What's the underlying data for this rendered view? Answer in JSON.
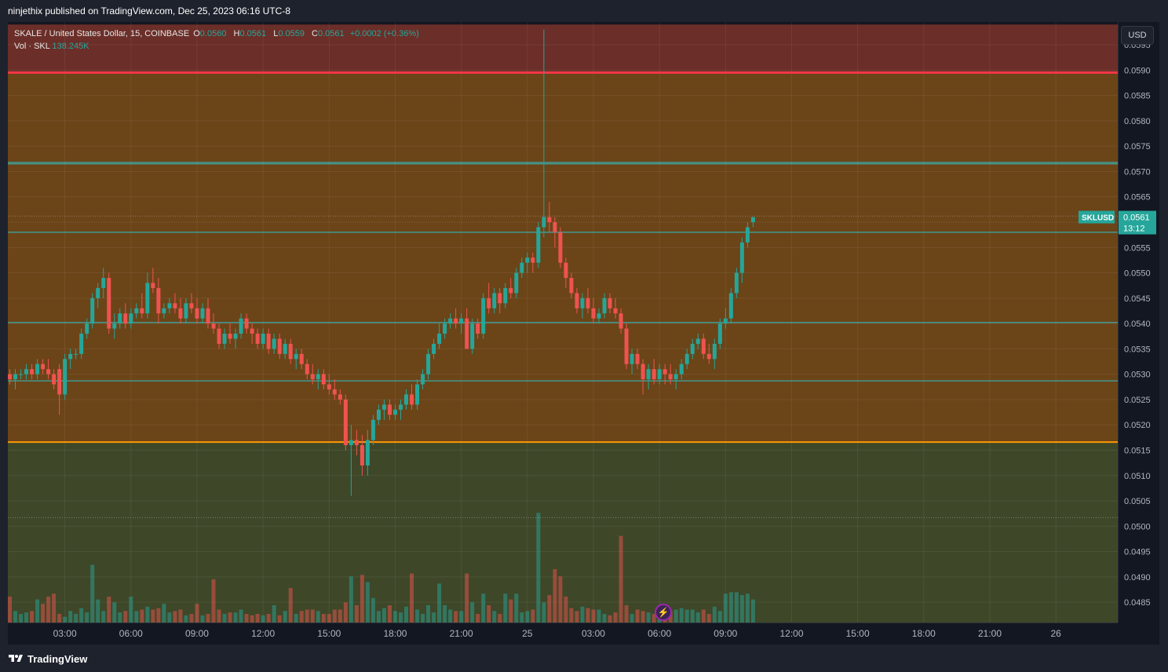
{
  "published_text": "ninjethix published on TradingView.com, Dec 25, 2023 06:16 UTC-8",
  "legend": {
    "symbol": "SKALE / United States Dollar, 15, COINBASE",
    "open_label": "O",
    "open": "0.0560",
    "high_label": "H",
    "high": "0.0561",
    "low_label": "L",
    "low": "0.0559",
    "close_label": "C",
    "close": "0.0561",
    "change": "+0.0002 (+0.36%)",
    "vol_label": "Vol · SKL",
    "vol_value": "138.245K"
  },
  "currency_button": "USD",
  "price_tag": {
    "symbol": "SKLUSD",
    "price": "0.0561",
    "countdown": "13:12"
  },
  "footer_brand": "TradingView",
  "colors": {
    "up": "#26a69a",
    "down": "#ef5350",
    "zone_top": "#6b2e28",
    "zone_mid": "#6b4418",
    "zone_bottom": "#3e4728",
    "hline": "#2ec4cf",
    "red_line": "#f23645",
    "orange_line": "#ff9800"
  },
  "chart_data": {
    "type": "candlestick",
    "title": "SKALE / United States Dollar, 15, COINBASE",
    "ylim": [
      0.0481,
      0.05995
    ],
    "y_ticks": [
      "0.0595",
      "0.0590",
      "0.0585",
      "0.0580",
      "0.0575",
      "0.0570",
      "0.0565",
      "0.0560",
      "0.0555",
      "0.0550",
      "0.0545",
      "0.0540",
      "0.0535",
      "0.0530",
      "0.0525",
      "0.0520",
      "0.0515",
      "0.0510",
      "0.0505",
      "0.0500",
      "0.0495",
      "0.0490",
      "0.0485"
    ],
    "x_ticks": [
      "03:00",
      "06:00",
      "09:00",
      "12:00",
      "15:00",
      "18:00",
      "21:00",
      "25",
      "03:00",
      "06:00",
      "09:00",
      "12:00",
      "15:00",
      "18:00",
      "21:00",
      "26"
    ],
    "x_tick_slot": [
      10,
      22,
      34,
      46,
      58,
      70,
      82,
      94,
      106,
      118,
      130,
      142,
      154,
      166,
      178,
      190
    ],
    "zones": [
      {
        "from": 0.05895,
        "to": 0.0599,
        "color": "zone_top"
      },
      {
        "from": 0.05165,
        "to": 0.05895,
        "color": "zone_mid"
      },
      {
        "from": 0.0481,
        "to": 0.05165,
        "color": "zone_bottom"
      }
    ],
    "hlines": [
      {
        "price": 0.05895,
        "color": "red_line",
        "width": 3
      },
      {
        "price": 0.05718,
        "color": "hline",
        "width": 1
      },
      {
        "price": 0.05715,
        "color": "hline",
        "width": 1
      },
      {
        "price": 0.0558,
        "color": "hline",
        "width": 1
      },
      {
        "price": 0.05402,
        "color": "hline",
        "width": 1
      },
      {
        "price": 0.05287,
        "color": "hline",
        "width": 1
      },
      {
        "price": 0.05166,
        "color": "orange_line",
        "width": 2
      }
    ],
    "dotted_lines": [
      0.05612,
      0.05017
    ],
    "last_price": 0.0561,
    "volume_ylim": [
      0,
      5200
    ],
    "candles": [
      [
        0.053,
        0.0531,
        0.0528,
        0.0529,
        900
      ],
      [
        0.0529,
        0.0531,
        0.0527,
        0.053,
        400
      ],
      [
        0.053,
        0.0531,
        0.0529,
        0.053,
        300
      ],
      [
        0.053,
        0.0532,
        0.0529,
        0.0531,
        350
      ],
      [
        0.0531,
        0.0532,
        0.0529,
        0.053,
        400
      ],
      [
        0.053,
        0.0533,
        0.0529,
        0.0532,
        800
      ],
      [
        0.0532,
        0.0533,
        0.053,
        0.0531,
        650
      ],
      [
        0.0531,
        0.0533,
        0.0529,
        0.053,
        900
      ],
      [
        0.053,
        0.0531,
        0.0527,
        0.0528,
        1000
      ],
      [
        0.0531,
        0.0532,
        0.0522,
        0.0526,
        300
      ],
      [
        0.0526,
        0.0534,
        0.0525,
        0.0533,
        200
      ],
      [
        0.0533,
        0.0535,
        0.0531,
        0.0534,
        400
      ],
      [
        0.0534,
        0.0535,
        0.0533,
        0.0534,
        300
      ],
      [
        0.0534,
        0.0539,
        0.0533,
        0.0538,
        500
      ],
      [
        0.0538,
        0.0541,
        0.0537,
        0.054,
        350
      ],
      [
        0.054,
        0.0546,
        0.0539,
        0.0545,
        2000
      ],
      [
        0.0545,
        0.0548,
        0.0543,
        0.0547,
        800
      ],
      [
        0.0547,
        0.0551,
        0.0545,
        0.0549,
        400
      ],
      [
        0.0549,
        0.055,
        0.0538,
        0.0539,
        900
      ],
      [
        0.0539,
        0.0542,
        0.0537,
        0.054,
        700
      ],
      [
        0.054,
        0.0543,
        0.0539,
        0.0542,
        350
      ],
      [
        0.0542,
        0.0544,
        0.0539,
        0.054,
        400
      ],
      [
        0.054,
        0.0543,
        0.0539,
        0.0542,
        900
      ],
      [
        0.0542,
        0.0544,
        0.0541,
        0.0543,
        400
      ],
      [
        0.0543,
        0.0546,
        0.0541,
        0.0542,
        450
      ],
      [
        0.0542,
        0.055,
        0.0541,
        0.0548,
        550
      ],
      [
        0.0548,
        0.0551,
        0.0546,
        0.0547,
        450
      ],
      [
        0.0547,
        0.0549,
        0.054,
        0.0542,
        500
      ],
      [
        0.0542,
        0.0544,
        0.0541,
        0.0543,
        650
      ],
      [
        0.0543,
        0.0545,
        0.0542,
        0.0544,
        350
      ],
      [
        0.0544,
        0.0546,
        0.0542,
        0.0543,
        400
      ],
      [
        0.0543,
        0.0545,
        0.054,
        0.0541,
        450
      ],
      [
        0.0541,
        0.0545,
        0.054,
        0.0544,
        250
      ],
      [
        0.0544,
        0.0546,
        0.0542,
        0.0543,
        300
      ],
      [
        0.0543,
        0.0545,
        0.054,
        0.0541,
        650
      ],
      [
        0.0541,
        0.0544,
        0.054,
        0.0543,
        250
      ],
      [
        0.0543,
        0.0545,
        0.0539,
        0.054,
        300
      ],
      [
        0.054,
        0.0542,
        0.0538,
        0.0539,
        1500
      ],
      [
        0.0539,
        0.054,
        0.0535,
        0.0536,
        450
      ],
      [
        0.0536,
        0.0539,
        0.0535,
        0.0538,
        300
      ],
      [
        0.0538,
        0.054,
        0.0536,
        0.0537,
        350
      ],
      [
        0.0537,
        0.0539,
        0.0535,
        0.0538,
        350
      ],
      [
        0.0538,
        0.0542,
        0.0537,
        0.0541,
        450
      ],
      [
        0.0541,
        0.0542,
        0.0538,
        0.0539,
        300
      ],
      [
        0.0539,
        0.054,
        0.0536,
        0.0538,
        250
      ],
      [
        0.0538,
        0.0539,
        0.0535,
        0.0536,
        300
      ],
      [
        0.0536,
        0.0539,
        0.0535,
        0.0538,
        250
      ],
      [
        0.0538,
        0.0539,
        0.0534,
        0.0535,
        300
      ],
      [
        0.0535,
        0.0538,
        0.0534,
        0.0537,
        600
      ],
      [
        0.0537,
        0.0538,
        0.0533,
        0.0534,
        250
      ],
      [
        0.0534,
        0.0537,
        0.0533,
        0.0536,
        400
      ],
      [
        0.0536,
        0.0537,
        0.0532,
        0.0533,
        1200
      ],
      [
        0.0533,
        0.0535,
        0.0531,
        0.0534,
        300
      ],
      [
        0.0534,
        0.0535,
        0.0531,
        0.0532,
        400
      ],
      [
        0.0532,
        0.0533,
        0.0529,
        0.053,
        450
      ],
      [
        0.053,
        0.0532,
        0.0528,
        0.0529,
        450
      ],
      [
        0.0529,
        0.0531,
        0.0527,
        0.053,
        400
      ],
      [
        0.053,
        0.0531,
        0.0527,
        0.0528,
        300
      ],
      [
        0.0528,
        0.053,
        0.0526,
        0.0527,
        300
      ],
      [
        0.0527,
        0.0529,
        0.0525,
        0.0526,
        450
      ],
      [
        0.0526,
        0.0527,
        0.0524,
        0.0525,
        450
      ],
      [
        0.0525,
        0.0526,
        0.0515,
        0.0516,
        700
      ],
      [
        0.0516,
        0.052,
        0.0506,
        0.0517,
        1600
      ],
      [
        0.0517,
        0.0519,
        0.0514,
        0.0516,
        600
      ],
      [
        0.0516,
        0.0518,
        0.051,
        0.0512,
        1650
      ],
      [
        0.0512,
        0.0519,
        0.051,
        0.0517,
        1400
      ],
      [
        0.0517,
        0.0522,
        0.0516,
        0.0521,
        850
      ],
      [
        0.0521,
        0.0524,
        0.052,
        0.0523,
        400
      ],
      [
        0.0523,
        0.0525,
        0.0521,
        0.0524,
        500
      ],
      [
        0.0524,
        0.0525,
        0.0521,
        0.0522,
        600
      ],
      [
        0.0522,
        0.0524,
        0.0521,
        0.0523,
        400
      ],
      [
        0.0523,
        0.0525,
        0.0521,
        0.0524,
        350
      ],
      [
        0.0524,
        0.0527,
        0.0523,
        0.0526,
        550
      ],
      [
        0.0526,
        0.0528,
        0.0523,
        0.0524,
        1700
      ],
      [
        0.0524,
        0.0529,
        0.0523,
        0.0528,
        450
      ],
      [
        0.0528,
        0.0531,
        0.0527,
        0.053,
        300
      ],
      [
        0.053,
        0.0535,
        0.0529,
        0.0534,
        600
      ],
      [
        0.0534,
        0.0537,
        0.0533,
        0.0536,
        350
      ],
      [
        0.0536,
        0.054,
        0.0535,
        0.0538,
        1350
      ],
      [
        0.0538,
        0.0541,
        0.0537,
        0.054,
        600
      ],
      [
        0.054,
        0.0542,
        0.0539,
        0.0541,
        450
      ],
      [
        0.0541,
        0.0543,
        0.0539,
        0.054,
        400
      ],
      [
        0.054,
        0.0542,
        0.0538,
        0.0541,
        400
      ],
      [
        0.0541,
        0.0543,
        0.0535,
        0.0535,
        1700
      ],
      [
        0.0535,
        0.0541,
        0.0534,
        0.054,
        700
      ],
      [
        0.054,
        0.0541,
        0.0537,
        0.0538,
        300
      ],
      [
        0.0538,
        0.0546,
        0.0537,
        0.0545,
        1000
      ],
      [
        0.0545,
        0.0548,
        0.0542,
        0.0543,
        600
      ],
      [
        0.0543,
        0.0547,
        0.0542,
        0.0546,
        400
      ],
      [
        0.0546,
        0.0547,
        0.0542,
        0.0544,
        300
      ],
      [
        0.0544,
        0.0548,
        0.0543,
        0.0547,
        1000
      ],
      [
        0.0547,
        0.0549,
        0.0545,
        0.0546,
        800
      ],
      [
        0.0546,
        0.0551,
        0.0545,
        0.055,
        1000
      ],
      [
        0.055,
        0.0553,
        0.0549,
        0.0552,
        350
      ],
      [
        0.0552,
        0.0554,
        0.055,
        0.0553,
        400
      ],
      [
        0.0553,
        0.0554,
        0.055,
        0.0552,
        450
      ],
      [
        0.0552,
        0.056,
        0.0551,
        0.0559,
        3800
      ],
      [
        0.0559,
        0.0598,
        0.0557,
        0.0561,
        700
      ],
      [
        0.0561,
        0.0564,
        0.0558,
        0.056,
        950
      ],
      [
        0.056,
        0.0561,
        0.0555,
        0.0558,
        1850
      ],
      [
        0.0558,
        0.0559,
        0.0551,
        0.0552,
        1600
      ],
      [
        0.0552,
        0.0553,
        0.0547,
        0.0549,
        900
      ],
      [
        0.0549,
        0.055,
        0.0545,
        0.0546,
        500
      ],
      [
        0.0546,
        0.0547,
        0.0542,
        0.0543,
        400
      ],
      [
        0.0543,
        0.0546,
        0.0541,
        0.0545,
        550
      ],
      [
        0.0545,
        0.0547,
        0.0542,
        0.0543,
        500
      ],
      [
        0.0543,
        0.0545,
        0.054,
        0.0541,
        450
      ],
      [
        0.0541,
        0.0543,
        0.054,
        0.0542,
        450
      ],
      [
        0.0542,
        0.0546,
        0.0541,
        0.0545,
        300
      ],
      [
        0.0545,
        0.0546,
        0.0542,
        0.0543,
        250
      ],
      [
        0.0543,
        0.0545,
        0.0541,
        0.0542,
        350
      ],
      [
        0.0542,
        0.0543,
        0.0538,
        0.0539,
        3000
      ],
      [
        0.0539,
        0.054,
        0.0531,
        0.0532,
        600
      ],
      [
        0.0532,
        0.0535,
        0.053,
        0.0534,
        300
      ],
      [
        0.0534,
        0.0535,
        0.0531,
        0.0532,
        450
      ],
      [
        0.0532,
        0.0533,
        0.0526,
        0.0529,
        400
      ],
      [
        0.0529,
        0.0532,
        0.0527,
        0.0531,
        350
      ],
      [
        0.0531,
        0.0533,
        0.0528,
        0.0529,
        300
      ],
      [
        0.0529,
        0.0532,
        0.0528,
        0.0531,
        400
      ],
      [
        0.0531,
        0.0532,
        0.0528,
        0.053,
        350
      ],
      [
        0.053,
        0.0532,
        0.0528,
        0.0529,
        400
      ],
      [
        0.0529,
        0.0531,
        0.0527,
        0.053,
        450
      ],
      [
        0.053,
        0.0533,
        0.0529,
        0.0532,
        500
      ],
      [
        0.0532,
        0.0535,
        0.0531,
        0.0534,
        450
      ],
      [
        0.0534,
        0.0537,
        0.0533,
        0.0536,
        450
      ],
      [
        0.0536,
        0.0538,
        0.0535,
        0.0537,
        350
      ],
      [
        0.0537,
        0.0538,
        0.0533,
        0.0534,
        450
      ],
      [
        0.0534,
        0.0536,
        0.0532,
        0.0533,
        300
      ],
      [
        0.0533,
        0.0537,
        0.0531,
        0.0536,
        550
      ],
      [
        0.0536,
        0.0541,
        0.0535,
        0.054,
        400
      ],
      [
        0.054,
        0.0543,
        0.0539,
        0.0541,
        1000
      ],
      [
        0.0541,
        0.0547,
        0.054,
        0.0546,
        1050
      ],
      [
        0.0546,
        0.0551,
        0.0545,
        0.055,
        1050
      ],
      [
        0.055,
        0.0557,
        0.0548,
        0.0556,
        950
      ],
      [
        0.0556,
        0.056,
        0.0555,
        0.0559,
        1000
      ],
      [
        0.056,
        0.0561,
        0.0559,
        0.0561,
        800
      ]
    ]
  }
}
